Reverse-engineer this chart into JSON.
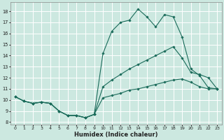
{
  "xlabel": "Humidex (Indice chaleur)",
  "bg_color": "#cce8e0",
  "line_color": "#1a6b5a",
  "grid_color": "#ffffff",
  "xlim": [
    -0.5,
    23.5
  ],
  "ylim": [
    7.8,
    18.8
  ],
  "yticks": [
    8,
    9,
    10,
    11,
    12,
    13,
    14,
    15,
    16,
    17,
    18
  ],
  "xticks": [
    0,
    1,
    2,
    3,
    4,
    5,
    6,
    7,
    8,
    9,
    10,
    11,
    12,
    13,
    14,
    15,
    16,
    17,
    18,
    19,
    20,
    21,
    22,
    23
  ],
  "series": [
    {
      "x": [
        0,
        1,
        2,
        3,
        4,
        5,
        6,
        7,
        8,
        9,
        10,
        11,
        12,
        13,
        14,
        15,
        16,
        17,
        18,
        19,
        20,
        21,
        22,
        23
      ],
      "y": [
        10.3,
        9.9,
        9.7,
        9.8,
        9.7,
        9.0,
        8.6,
        8.6,
        8.4,
        8.7,
        10.2,
        10.4,
        10.6,
        10.9,
        11.0,
        11.2,
        11.4,
        11.6,
        11.8,
        11.9,
        11.6,
        11.2,
        11.0,
        11.0
      ]
    },
    {
      "x": [
        0,
        1,
        2,
        3,
        4,
        5,
        6,
        7,
        8,
        9,
        10,
        11,
        12,
        13,
        14,
        15,
        16,
        17,
        18,
        19,
        20,
        21,
        22,
        23
      ],
      "y": [
        10.3,
        9.9,
        9.7,
        9.8,
        9.7,
        9.0,
        8.6,
        8.6,
        8.4,
        8.7,
        11.2,
        11.8,
        12.3,
        12.8,
        13.2,
        13.6,
        14.0,
        14.4,
        14.8,
        13.8,
        12.5,
        12.3,
        12.0,
        11.0
      ]
    },
    {
      "x": [
        0,
        1,
        2,
        3,
        4,
        5,
        6,
        7,
        8,
        9,
        10,
        11,
        12,
        13,
        14,
        15,
        16,
        17,
        18,
        19,
        20,
        21,
        22,
        23
      ],
      "y": [
        10.3,
        9.9,
        9.7,
        9.8,
        9.7,
        9.0,
        8.6,
        8.6,
        8.4,
        8.7,
        14.2,
        16.2,
        17.0,
        17.2,
        18.2,
        17.5,
        16.6,
        17.7,
        17.5,
        15.7,
        12.8,
        12.2,
        11.1,
        11.0
      ]
    }
  ]
}
